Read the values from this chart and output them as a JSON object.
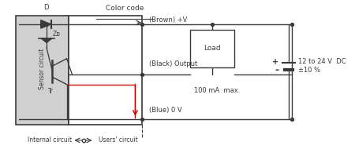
{
  "bg_color": "#ffffff",
  "line_color": "#3a3a3a",
  "red_color": "#cc0000",
  "title": "Color code",
  "brown_label": "(Brown) +V",
  "black_label": "(Black) Output",
  "blue_label": "(Blue) 0 V",
  "load_label": "Load",
  "current_label": "100 mA  max.",
  "voltage_label": "12 to 24 V  DC",
  "voltage_label2": "±10 %",
  "sensor_circuit_label": "Sensor circuit",
  "internal_circuit_label": "Internal circuit",
  "users_circuit_label": "Users' circuit",
  "D_label": "D",
  "ZD_label": "Zᴅ",
  "Tr_label": "Tr",
  "plus_label": "+",
  "minus_label": "-"
}
